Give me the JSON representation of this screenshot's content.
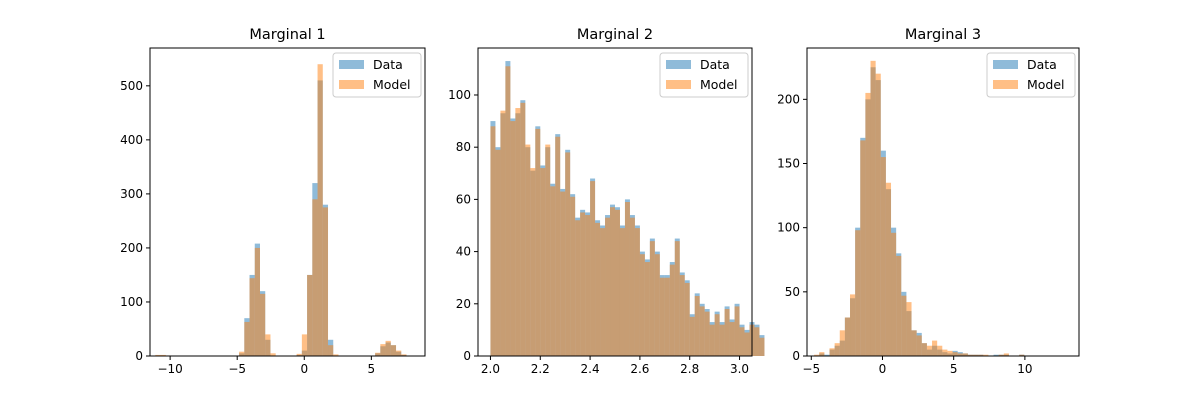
{
  "chart_data": [
    {
      "type": "bar",
      "title": "Marginal 1",
      "xlim": [
        -11.5,
        9
      ],
      "ylim": [
        0,
        570
      ],
      "xticks": [
        -10,
        -5,
        0,
        5
      ],
      "yticks": [
        0,
        100,
        200,
        300,
        400,
        500
      ],
      "legend": "top-right",
      "bin_start": -11.1,
      "bin_width": 0.39,
      "series": [
        {
          "name": "Data",
          "color": "#1f77b4",
          "values": [
            1,
            1,
            0,
            0,
            0,
            0,
            0,
            0,
            0,
            0,
            0,
            0,
            0,
            0,
            0,
            0,
            5,
            70,
            150,
            208,
            120,
            30,
            0,
            0,
            0,
            0,
            0,
            2,
            10,
            150,
            320,
            510,
            280,
            30,
            0,
            0,
            0,
            0,
            0,
            0,
            0,
            0,
            5,
            18,
            25,
            20,
            8,
            2,
            0
          ]
        },
        {
          "name": "Model",
          "color": "#ff7f0e",
          "values": [
            2,
            2,
            1,
            0,
            0,
            0,
            0,
            0,
            0,
            0,
            0,
            0,
            0,
            0,
            0,
            0,
            8,
            63,
            144,
            200,
            115,
            40,
            5,
            0,
            0,
            0,
            0,
            4,
            40,
            150,
            290,
            540,
            275,
            20,
            3,
            0,
            0,
            0,
            0,
            0,
            0,
            0,
            6,
            22,
            28,
            20,
            10,
            3,
            0
          ]
        }
      ]
    },
    {
      "type": "bar",
      "title": "Marginal 2",
      "xlim": [
        1.95,
        3.05
      ],
      "ylim": [
        0,
        118
      ],
      "xticks": [
        "2.0",
        "2.2",
        "2.4",
        "2.6",
        "2.8",
        "3.0"
      ],
      "yticks": [
        0,
        20,
        40,
        60,
        80,
        100
      ],
      "legend": "top-right",
      "bin_start": 2.0,
      "bin_width": 0.02,
      "series": [
        {
          "name": "Data",
          "color": "#1f77b4",
          "values": [
            90,
            80,
            93,
            113,
            91,
            93,
            98,
            80,
            71,
            88,
            73,
            80,
            66,
            85,
            64,
            79,
            62,
            53,
            56,
            55,
            68,
            52,
            50,
            54,
            58,
            57,
            50,
            60,
            54,
            50,
            40,
            37,
            45,
            40,
            31,
            31,
            36,
            45,
            32,
            29,
            16,
            24,
            20,
            18,
            13,
            17,
            13,
            19,
            14,
            20,
            12,
            10,
            13,
            12,
            8
          ]
        },
        {
          "name": "Model",
          "color": "#ff7f0e",
          "values": [
            88,
            79,
            94,
            111,
            90,
            95,
            97,
            81,
            72,
            87,
            72,
            81,
            65,
            84,
            63,
            78,
            61,
            52,
            55,
            54,
            67,
            51,
            49,
            53,
            57,
            56,
            49,
            59,
            53,
            49,
            39,
            36,
            44,
            39,
            30,
            30,
            35,
            44,
            31,
            28,
            15,
            23,
            19,
            17,
            12,
            16,
            12,
            18,
            13,
            19,
            11,
            9,
            12,
            11,
            7
          ]
        }
      ]
    },
    {
      "type": "bar",
      "title": "Marginal 3",
      "xlim": [
        -5.3,
        13.8
      ],
      "ylim": [
        0,
        240
      ],
      "xticks": [
        -5,
        0,
        5,
        10
      ],
      "yticks": [
        0,
        50,
        100,
        150,
        200
      ],
      "legend": "top-right",
      "bin_start": -4.8,
      "bin_width": 0.36,
      "series": [
        {
          "name": "Data",
          "color": "#1f77b4",
          "values": [
            0,
            2,
            1,
            5,
            8,
            12,
            30,
            45,
            100,
            170,
            200,
            225,
            215,
            160,
            130,
            100,
            80,
            50,
            35,
            20,
            18,
            10,
            5,
            8,
            5,
            3,
            2,
            4,
            3,
            2,
            1,
            1,
            1,
            0,
            0,
            1,
            1,
            1,
            0,
            0,
            1,
            0,
            0,
            0,
            0,
            0,
            0,
            0,
            0,
            0,
            0
          ]
        },
        {
          "name": "Model",
          "color": "#ff7f0e",
          "values": [
            1,
            3,
            0,
            6,
            10,
            20,
            30,
            48,
            98,
            168,
            205,
            230,
            220,
            155,
            135,
            96,
            78,
            47,
            42,
            20,
            16,
            10,
            8,
            12,
            8,
            5,
            4,
            3,
            2,
            2,
            1,
            1,
            1,
            1,
            0,
            0,
            1,
            2,
            0,
            0,
            1,
            0,
            0,
            0,
            0,
            0,
            0,
            0,
            0,
            0,
            0
          ]
        }
      ]
    }
  ]
}
